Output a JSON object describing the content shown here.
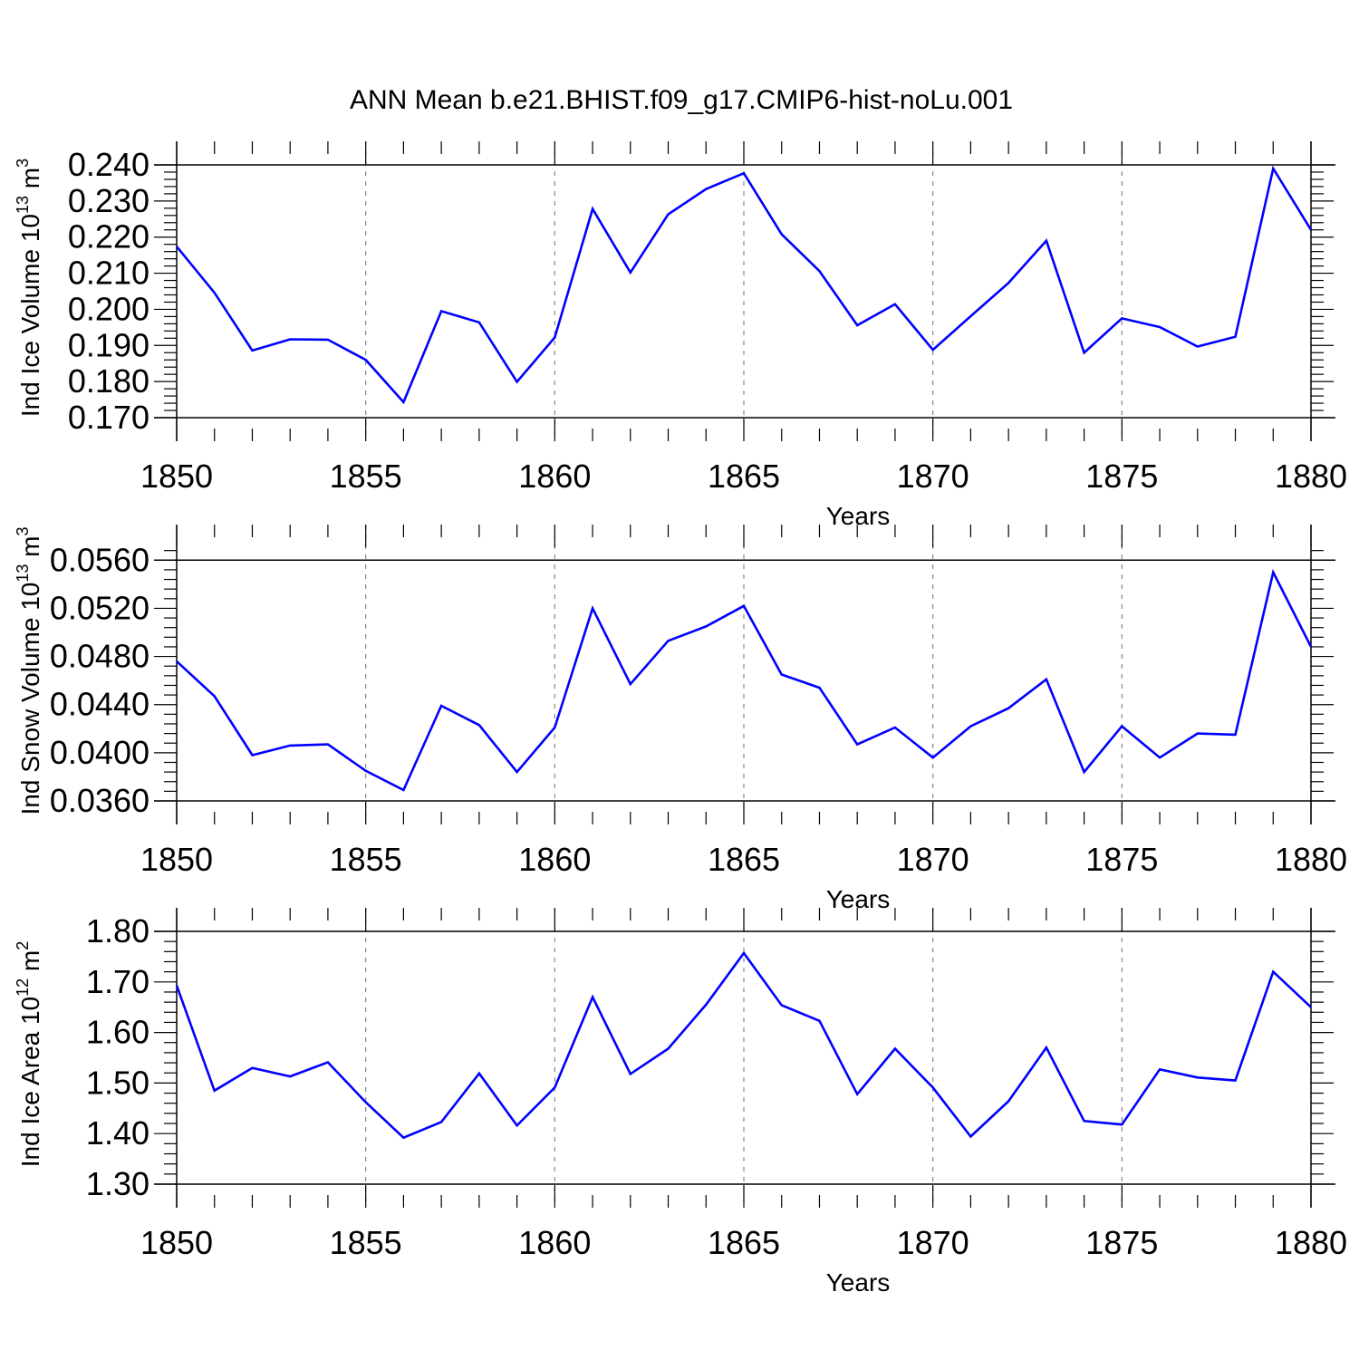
{
  "title": "ANN Mean b.e21.BHIST.f09_g17.CMIP6-hist-noLu.001",
  "colors": {
    "line": "#0000ff",
    "axis": "#000000",
    "grid": "#888888"
  },
  "chart_data": [
    {
      "type": "line",
      "xlabel": "Years",
      "ylabel": {
        "text": "Ind Ice Volume 10",
        "exponent": "13",
        "unit": " m",
        "unit_exponent": "3"
      },
      "xlim": [
        1850,
        1880
      ],
      "ylim": [
        0.17,
        0.24
      ],
      "x_ticks": [
        1850,
        1855,
        1860,
        1865,
        1870,
        1875,
        1880
      ],
      "y_ticks": [
        "0.170",
        "0.180",
        "0.190",
        "0.200",
        "0.210",
        "0.220",
        "0.230",
        "0.240"
      ],
      "x": [
        1850,
        1851,
        1852,
        1853,
        1854,
        1855,
        1856,
        1857,
        1858,
        1859,
        1860,
        1861,
        1862,
        1863,
        1864,
        1865,
        1866,
        1867,
        1868,
        1869,
        1870,
        1871,
        1872,
        1873,
        1874,
        1875,
        1876,
        1877,
        1878,
        1879,
        1880
      ],
      "values": [
        0.2174,
        0.2046,
        0.1886,
        0.1917,
        0.1916,
        0.186,
        0.1743,
        0.1995,
        0.1964,
        0.1799,
        0.1922,
        0.2278,
        0.2102,
        0.2263,
        0.2333,
        0.2377,
        0.2208,
        0.2106,
        0.1956,
        0.2014,
        0.1888,
        0.1981,
        0.2073,
        0.219,
        0.188,
        0.1975,
        0.1951,
        0.1897,
        0.1924,
        0.239,
        0.222
      ]
    },
    {
      "type": "line",
      "xlabel": "Years",
      "ylabel": {
        "text": "Ind Snow Volume 10",
        "exponent": "13",
        "unit": " m",
        "unit_exponent": "3"
      },
      "xlim": [
        1850,
        1880
      ],
      "ylim": [
        0.036,
        0.057
      ],
      "x_ticks": [
        1850,
        1855,
        1860,
        1865,
        1870,
        1875,
        1880
      ],
      "y_ticks": [
        "0.0360",
        "0.0400",
        "0.0440",
        "0.0480",
        "0.0520",
        "0.0560"
      ],
      "x": [
        1850,
        1851,
        1852,
        1853,
        1854,
        1855,
        1856,
        1857,
        1858,
        1859,
        1860,
        1861,
        1862,
        1863,
        1864,
        1865,
        1866,
        1867,
        1868,
        1869,
        1870,
        1871,
        1872,
        1873,
        1874,
        1875,
        1876,
        1877,
        1878,
        1879,
        1880
      ],
      "values": [
        0.0476,
        0.0447,
        0.0398,
        0.0406,
        0.0407,
        0.0385,
        0.0369,
        0.0439,
        0.0423,
        0.0384,
        0.0421,
        0.052,
        0.0457,
        0.0493,
        0.0505,
        0.0522,
        0.0465,
        0.0454,
        0.0407,
        0.0421,
        0.0396,
        0.0422,
        0.0437,
        0.0461,
        0.0384,
        0.0422,
        0.0396,
        0.0416,
        0.0415,
        0.055,
        0.0488
      ]
    },
    {
      "type": "line",
      "xlabel": "Years",
      "ylabel": {
        "text": "Ind Ice Area 10",
        "exponent": "12",
        "unit": " m",
        "unit_exponent": "2"
      },
      "xlim": [
        1850,
        1880
      ],
      "ylim": [
        1.3,
        1.8
      ],
      "x_ticks": [
        1850,
        1855,
        1860,
        1865,
        1870,
        1875,
        1880
      ],
      "y_ticks": [
        "1.30",
        "1.40",
        "1.50",
        "1.60",
        "1.70",
        "1.80"
      ],
      "x": [
        1850,
        1851,
        1852,
        1853,
        1854,
        1855,
        1856,
        1857,
        1858,
        1859,
        1860,
        1861,
        1862,
        1863,
        1864,
        1865,
        1866,
        1867,
        1868,
        1869,
        1870,
        1871,
        1872,
        1873,
        1874,
        1875,
        1876,
        1877,
        1878,
        1879,
        1880
      ],
      "values": [
        1.693,
        1.485,
        1.53,
        1.513,
        1.541,
        1.462,
        1.392,
        1.423,
        1.519,
        1.416,
        1.491,
        1.67,
        1.518,
        1.568,
        1.655,
        1.757,
        1.654,
        1.623,
        1.478,
        1.568,
        1.491,
        1.394,
        1.464,
        1.57,
        1.425,
        1.418,
        1.527,
        1.511,
        1.505,
        1.72,
        1.65
      ]
    }
  ]
}
